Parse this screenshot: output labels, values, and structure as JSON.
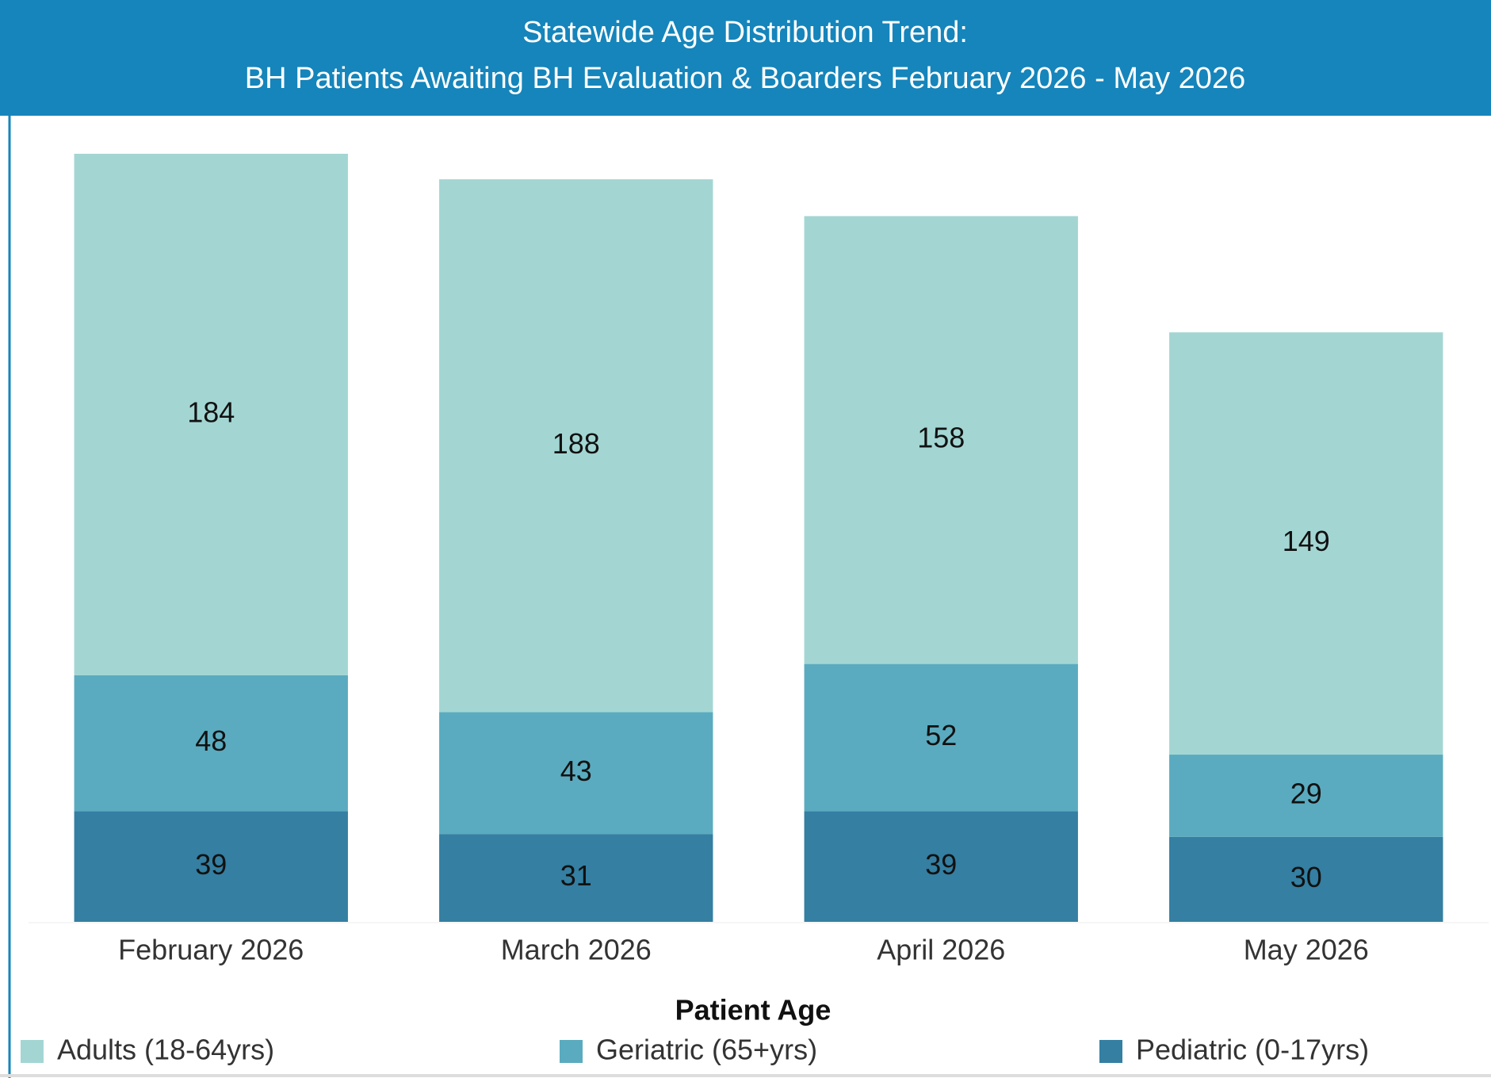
{
  "chart_data": {
    "type": "stacked_bar",
    "title": "Statewide Age Distribution Trend:",
    "subtitle": "BH Patients Awaiting BH Evaluation & Boarders February 2026 - May 2026",
    "categories": [
      "February 2026",
      "March 2026",
      "April 2026",
      "May 2026"
    ],
    "legend_title": "Patient Age",
    "series": [
      {
        "name": "Adults (18-64yrs)",
        "color": "#a3d6d3",
        "values": [
          184,
          188,
          158,
          149
        ]
      },
      {
        "name": "Geriatric (65+yrs)",
        "color": "#5aabbf",
        "values": [
          48,
          43,
          52,
          29
        ]
      },
      {
        "name": "Pediatric (0-17yrs)",
        "color": "#347fa2",
        "values": [
          39,
          31,
          39,
          30
        ]
      }
    ]
  }
}
